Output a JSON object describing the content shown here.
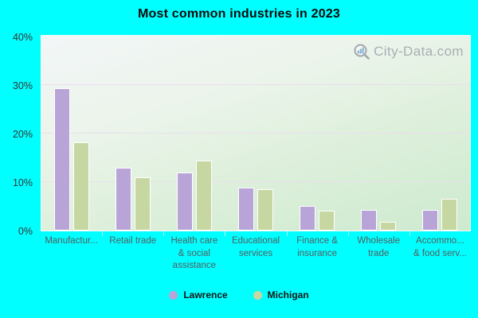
{
  "page": {
    "background_color": "#00ffff"
  },
  "title": "Most common industries in 2023",
  "watermark": {
    "text": "City-Data.com",
    "icon": "magnifier-bar-chart-icon",
    "color": "#a4a9b1"
  },
  "chart_data": {
    "type": "bar",
    "title": "Most common industries in 2023",
    "categories": [
      "Manufacturing",
      "Retail trade",
      "Health care & social assistance",
      "Educational services",
      "Finance & insurance",
      "Wholesale trade",
      "Accommodation & food services"
    ],
    "category_labels": [
      "Manufactur...",
      "Retail trade",
      "Health care\n& social\nassistance",
      "Educational\nservices",
      "Finance &\ninsurance",
      "Wholesale\ntrade",
      "Accommo...\n& food serv..."
    ],
    "series": [
      {
        "name": "Lawrence",
        "color": "#b9a4d8",
        "values": [
          29.3,
          13.0,
          12.0,
          8.8,
          5.1,
          4.2,
          4.2
        ]
      },
      {
        "name": "Michigan",
        "color": "#c6d7a2",
        "values": [
          18.2,
          11.0,
          14.4,
          8.6,
          4.1,
          1.8,
          6.6
        ]
      }
    ],
    "ylim": [
      0,
      40
    ],
    "y_ticks": [
      0,
      10,
      20,
      30,
      40
    ],
    "y_tick_suffix": "%",
    "y_tick_labels": [
      "0%",
      "10%",
      "20%",
      "30%",
      "40%"
    ],
    "grid": "horizontal",
    "legend_position": "bottom",
    "bar_border_color": "#ffffff",
    "gridline_color": "#e9dfec"
  }
}
